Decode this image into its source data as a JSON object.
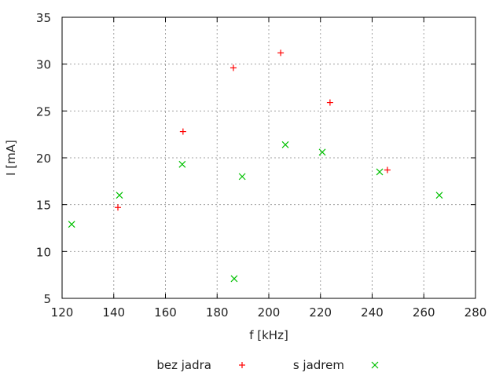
{
  "chart_data": {
    "type": "scatter",
    "title": "",
    "xlabel": "f [kHz]",
    "ylabel": "I [mA]",
    "xlim": [
      120,
      280
    ],
    "ylim": [
      5,
      35
    ],
    "xticks": [
      120,
      140,
      160,
      180,
      200,
      220,
      240,
      260,
      280
    ],
    "yticks": [
      5,
      10,
      15,
      20,
      25,
      30,
      35
    ],
    "grid": true,
    "legend_placement": "bottom",
    "series": [
      {
        "name": "bez jadra",
        "marker": "plus",
        "color": "#ff0000",
        "points": [
          [
            141.6,
            14.7
          ],
          [
            166.8,
            22.8
          ],
          [
            186.3,
            29.6
          ],
          [
            204.6,
            31.2
          ],
          [
            223.7,
            25.9
          ],
          [
            245.9,
            18.7
          ]
        ]
      },
      {
        "name": "s jadrem",
        "marker": "cross",
        "color": "#00c000",
        "points": [
          [
            123.7,
            12.9
          ],
          [
            142.2,
            16.0
          ],
          [
            166.5,
            19.3
          ],
          [
            186.6,
            7.1
          ],
          [
            189.7,
            18.0
          ],
          [
            206.4,
            21.4
          ],
          [
            220.7,
            20.6
          ],
          [
            242.9,
            18.5
          ],
          [
            266.0,
            16.0
          ]
        ]
      }
    ]
  }
}
